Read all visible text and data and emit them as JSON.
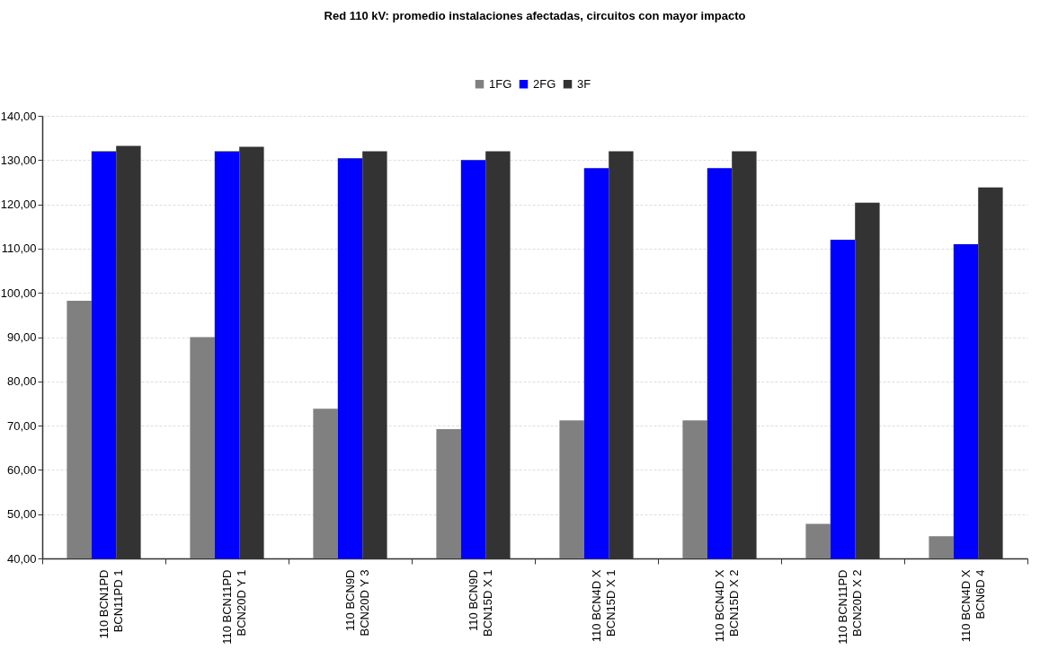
{
  "chart_data": {
    "type": "bar",
    "title": "Red 110 kV: promedio instalaciones afectadas, circuitos con mayor impacto",
    "categories": [
      "110 BCN1PD\nBCN11PD 1",
      "110 BCN11PD\nBCN20D Y 1",
      "110 BCN9D\nBCN20D Y 3",
      "110 BCN9D\nBCN15D X 1",
      "110 BCN4D X\nBCN15D X 1",
      "110 BCN4D X\nBCN15D X 2",
      "110 BCN11PD\nBCN20D X 2",
      "110 BCN4D X\nBCN6D 4"
    ],
    "series": [
      {
        "name": "1FG",
        "color": "#808080",
        "values": [
          98.2,
          90,
          73.8,
          69.2,
          71.2,
          71.2,
          47.8,
          45
        ]
      },
      {
        "name": "2FG",
        "color": "#0000ff",
        "values": [
          132,
          132,
          130.4,
          130,
          128.2,
          128.2,
          112,
          111
        ]
      },
      {
        "name": "3F",
        "color": "#333333",
        "values": [
          133.2,
          133,
          132,
          132,
          132,
          132,
          120.4,
          123.8
        ]
      }
    ],
    "ylim": [
      40,
      140
    ],
    "yticks": [
      {
        "value": 40,
        "label": "40,00"
      },
      {
        "value": 50,
        "label": "50,00"
      },
      {
        "value": 60,
        "label": "60,00"
      },
      {
        "value": 70,
        "label": "70,00"
      },
      {
        "value": 80,
        "label": "80,00"
      },
      {
        "value": 90,
        "label": "90,00"
      },
      {
        "value": 100,
        "label": "100,00"
      },
      {
        "value": 110,
        "label": "110,00"
      },
      {
        "value": 120,
        "label": "120,00"
      },
      {
        "value": 130,
        "label": "130,00"
      },
      {
        "value": 140,
        "label": "140,00"
      }
    ],
    "grid": "y",
    "legend": "top"
  }
}
